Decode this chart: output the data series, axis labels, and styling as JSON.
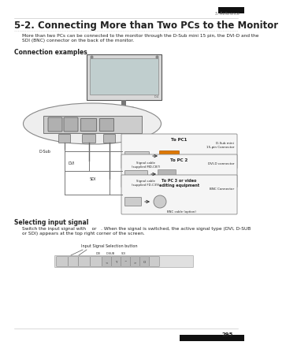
{
  "page_num": "295",
  "chapter": "5. Reference",
  "title": "5-2. Connecting More than Two PCs to the Monitor",
  "body_text": "More than two PCs can be connected to the monitor through the D-Sub mini 15 pin, the DVI-D and the\nSDI (BNC) connector on the back of the monitor.",
  "section2_title": "Connection examples",
  "section3_title": "Selecting input signal",
  "section3_body": "Switch the input signal with    or   . When the signal is switched, the active signal type (DVI, D-SUB\nor SDI) appears at the top right corner of the screen.",
  "input_label": "Input Signal Selection button",
  "bg_color": "#ffffff",
  "text_color": "#222222",
  "light_gray": "#bbbbbb",
  "dark_gray": "#666666",
  "mid_gray": "#999999",
  "title_font_size": 8.5,
  "body_font_size": 4.2,
  "section_font_size": 5.5
}
